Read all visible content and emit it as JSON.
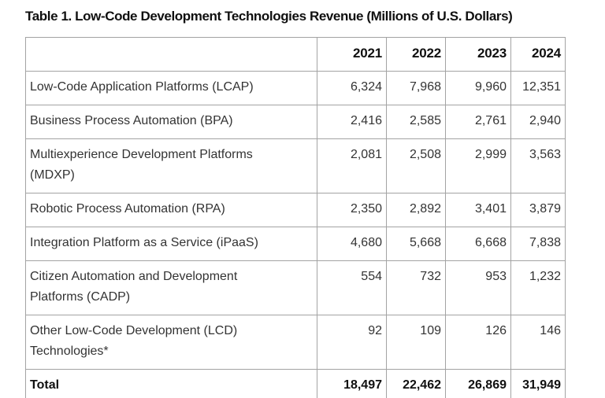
{
  "title": "Table 1. Low-Code Development Technologies Revenue (Millions of U.S. Dollars)",
  "table": {
    "columns": {
      "label": "",
      "y2021": "2021",
      "y2022": "2022",
      "y2023": "2023",
      "y2024": "2024"
    },
    "rows": [
      {
        "label": "Low-Code Application Platforms (LCAP)",
        "values": [
          "6,324",
          "7,968",
          "9,960",
          "12,351"
        ]
      },
      {
        "label": "Business Process Automation (BPA)",
        "values": [
          "2,416",
          "2,585",
          "2,761",
          "2,940"
        ]
      },
      {
        "label": "Multiexperience Development Platforms (MDXP)",
        "values": [
          "2,081",
          "2,508",
          "2,999",
          "3,563"
        ]
      },
      {
        "label": "Robotic Process Automation (RPA)",
        "values": [
          "2,350",
          "2,892",
          "3,401",
          "3,879"
        ]
      },
      {
        "label": "Integration Platform as a Service (iPaaS)",
        "values": [
          "4,680",
          "5,668",
          "6,668",
          "7,838"
        ]
      },
      {
        "label": "Citizen Automation and Development Platforms (CADP)",
        "values": [
          "554",
          "732",
          "953",
          "1,232"
        ]
      },
      {
        "label": "Other Low-Code Development (LCD) Technologies*",
        "values": [
          "92",
          "109",
          "126",
          "146"
        ]
      }
    ],
    "total": {
      "label": "Total",
      "values": [
        "18,497",
        "22,462",
        "26,869",
        "31,949"
      ]
    }
  },
  "chart_data": {
    "type": "table",
    "title": "Table 1. Low-Code Development Technologies Revenue (Millions of U.S. Dollars)",
    "unit": "Millions of U.S. Dollars",
    "columns": [
      "2021",
      "2022",
      "2023",
      "2024"
    ],
    "series": [
      {
        "name": "Low-Code Application Platforms (LCAP)",
        "values": [
          6324,
          7968,
          9960,
          12351
        ]
      },
      {
        "name": "Business Process Automation (BPA)",
        "values": [
          2416,
          2585,
          2761,
          2940
        ]
      },
      {
        "name": "Multiexperience Development Platforms (MDXP)",
        "values": [
          2081,
          2508,
          2999,
          3563
        ]
      },
      {
        "name": "Robotic Process Automation (RPA)",
        "values": [
          2350,
          2892,
          3401,
          3879
        ]
      },
      {
        "name": "Integration Platform as a Service (iPaaS)",
        "values": [
          4680,
          5668,
          6668,
          7838
        ]
      },
      {
        "name": "Citizen Automation and Development Platforms (CADP)",
        "values": [
          554,
          732,
          953,
          1232
        ]
      },
      {
        "name": "Other Low-Code Development (LCD) Technologies*",
        "values": [
          92,
          109,
          126,
          146
        ]
      },
      {
        "name": "Total",
        "values": [
          18497,
          22462,
          26869,
          31949
        ]
      }
    ]
  },
  "colors": {
    "background": "#ffffff",
    "border": "#a3a3a3",
    "text": "#333333",
    "strong_text": "#101010"
  }
}
